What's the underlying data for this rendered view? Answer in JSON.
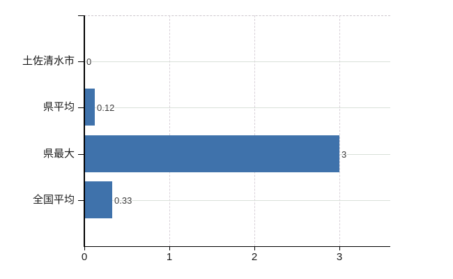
{
  "chart_data": {
    "type": "bar",
    "orientation": "horizontal",
    "title": "",
    "categories": [
      "土佐清水市",
      "県平均",
      "県最大",
      "全国平均"
    ],
    "values": [
      0,
      0.12,
      3,
      0.33
    ],
    "value_labels": [
      "0",
      "0.12",
      "3",
      "0.33"
    ],
    "x_tick_labels": [
      "0",
      "1",
      "2",
      "3"
    ],
    "x_tick_values": [
      0,
      1,
      2,
      3
    ],
    "xlim": [
      0,
      3.6
    ],
    "xlabel": "",
    "ylabel": "",
    "grid": "on",
    "legend_position": "none",
    "colors": {
      "bar": "#3f72ab",
      "grid_horizontal": "#d9e0d9",
      "grid_vertical": "#d8d0d8",
      "plot_top_border": "#ccc6cc",
      "axis": "#000000",
      "category_text": "#1a1a1a",
      "tick_text": "#1a1a1a",
      "value_text": "#3a3a3a",
      "background": "#ffffff"
    }
  }
}
